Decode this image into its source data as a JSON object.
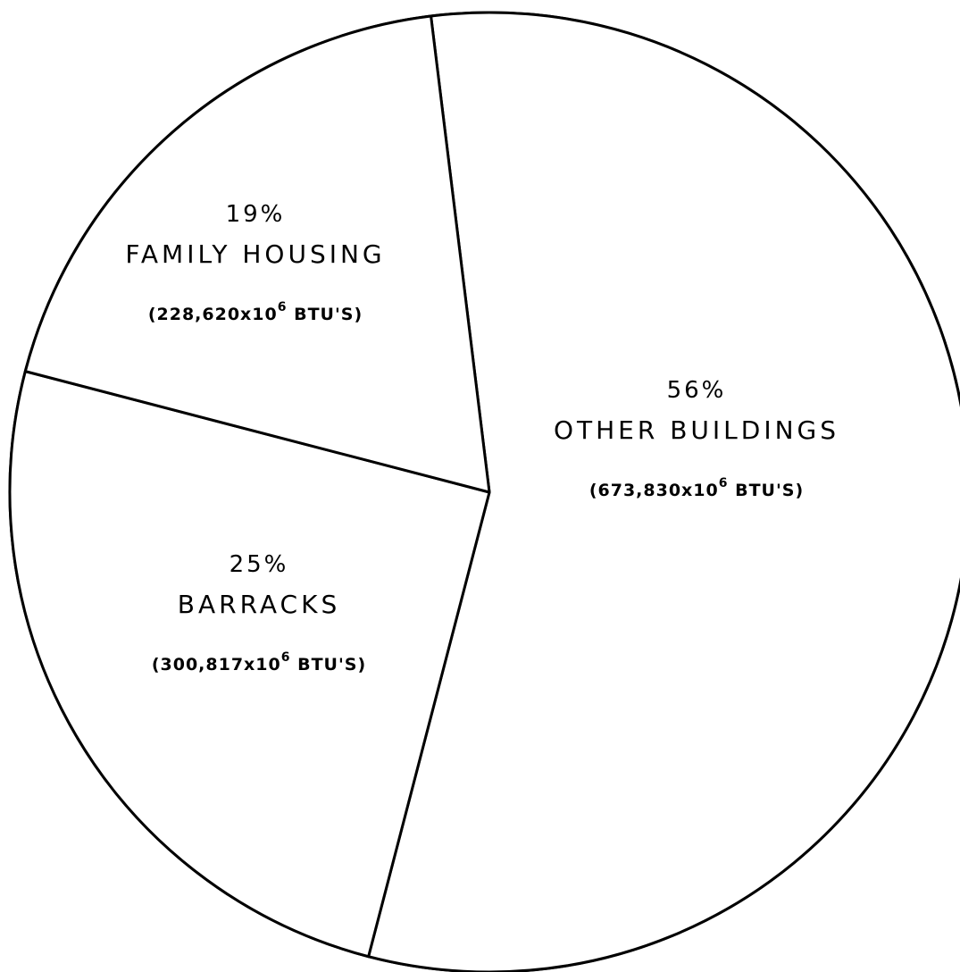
{
  "chart_data": {
    "type": "pie",
    "title": "",
    "slices": [
      {
        "label": "OTHER BUILDINGS",
        "percent_label": "56%",
        "percent": 56,
        "value": 673830,
        "value_prefix": "(673,830x10",
        "value_exp": "6",
        "value_suffix": " BTU'S)"
      },
      {
        "label": "BARRACKS",
        "percent_label": "25%",
        "percent": 25,
        "value": 300817,
        "value_prefix": "(300,817x10",
        "value_exp": "6",
        "value_suffix": " BTU'S)"
      },
      {
        "label": "FAMILY HOUSING",
        "percent_label": "19%",
        "percent": 19,
        "value": 228620,
        "value_prefix": "(228,620x10",
        "value_exp": "6",
        "value_suffix": " BTU'S)"
      }
    ],
    "grid": false,
    "legend": "none",
    "colors": {
      "outline": "#000000",
      "fill": "#ffffff"
    }
  }
}
